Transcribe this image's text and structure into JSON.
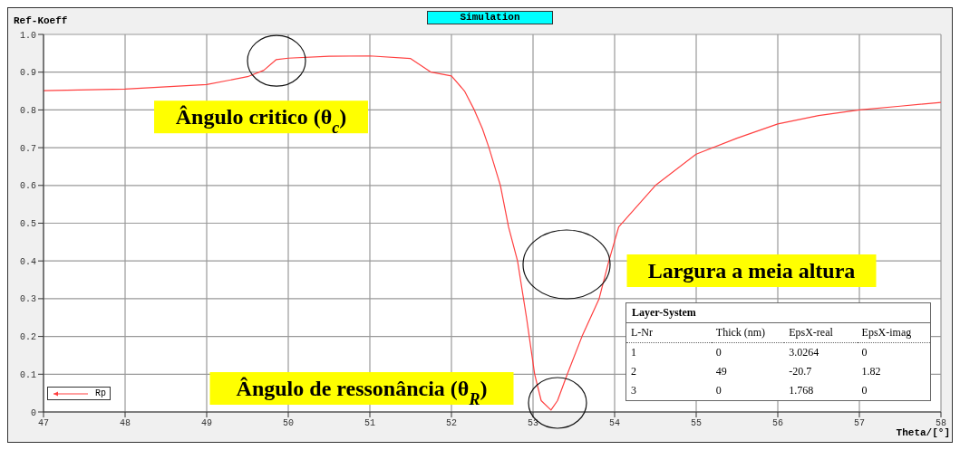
{
  "chart_data": {
    "type": "line",
    "title": "Simulation",
    "xlabel": "Theta/[°]",
    "ylabel": "Ref-Koeff",
    "x": [
      47,
      48,
      49,
      49.5,
      49.7,
      49.85,
      50,
      50.5,
      51,
      51.5,
      51.75,
      52,
      52.16,
      52.28,
      52.38,
      52.46,
      52.6,
      52.7,
      52.81,
      52.92,
      53.02,
      53.1,
      53.22,
      53.3,
      53.42,
      53.6,
      53.81,
      53.93,
      54.05,
      54.5,
      55,
      55.5,
      56,
      56.5,
      57,
      57.5,
      58
    ],
    "series": [
      {
        "name": "Rp",
        "color": "#ff4040",
        "values": [
          0.851,
          0.855,
          0.867,
          0.888,
          0.905,
          0.933,
          0.937,
          0.942,
          0.943,
          0.936,
          0.9,
          0.89,
          0.85,
          0.8,
          0.75,
          0.7,
          0.6,
          0.49,
          0.4,
          0.25,
          0.1,
          0.03,
          0.005,
          0.03,
          0.1,
          0.2,
          0.3,
          0.4,
          0.49,
          0.6,
          0.683,
          0.725,
          0.763,
          0.785,
          0.8,
          0.81,
          0.82
        ]
      }
    ],
    "xlim": [
      47,
      58
    ],
    "xticks": [
      47,
      48,
      49,
      50,
      51,
      52,
      53,
      54,
      55,
      56,
      57,
      58
    ],
    "ylim": [
      0,
      1
    ],
    "yticks": [
      0,
      0.1,
      0.2,
      0.3,
      0.4,
      0.5,
      0.6,
      0.7,
      0.8,
      0.9,
      {
        "value": 1,
        "label": "1.0"
      }
    ],
    "grid": true,
    "legend": "bottom left",
    "marker": "none",
    "line_style": "solid",
    "annotations": [
      {
        "text": "Ângulo critico (θ$_{c}$)",
        "x": 49.85,
        "y": 0.93
      },
      "Ângulo de ressonância (θ$_{R}$)",
      "Largura a meia altura",
      "Layer-System",
      "L-Nr",
      "Thick (nm)",
      "EpsX-real",
      "EpsX-imag",
      "1",
      "0",
      "3.0264",
      "0",
      "2",
      "49",
      "-20.7",
      "1.82",
      "3",
      "0",
      "1.768",
      "0"
    ]
  }
}
